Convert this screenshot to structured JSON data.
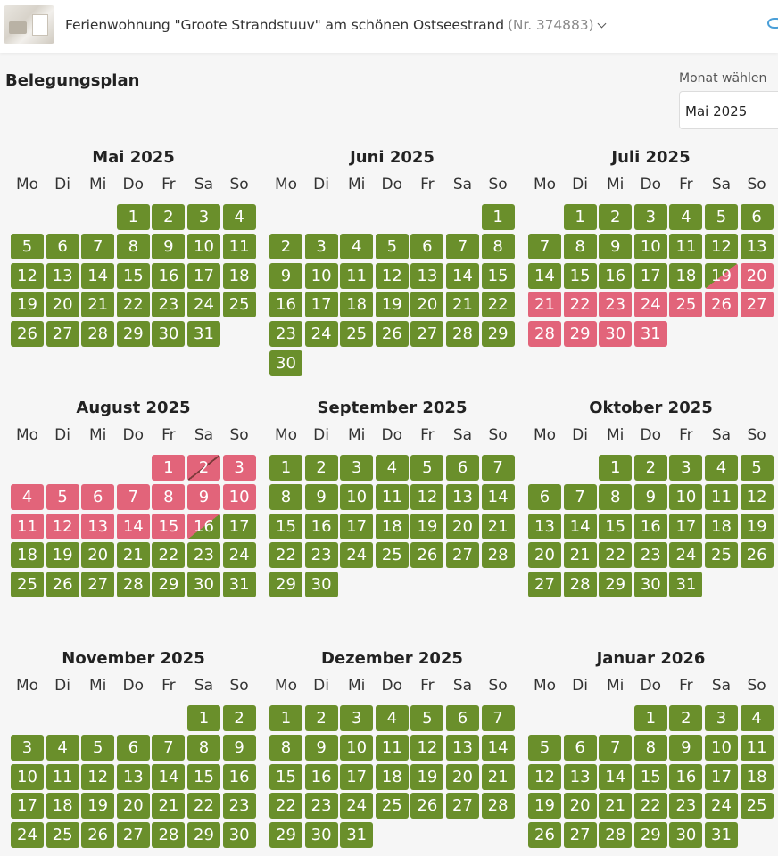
{
  "header": {
    "property_title": "Ferienwohnung \"Groote Strandstuuv\" am schönen Ostseestrand",
    "property_nr": "(Nr. 374883)"
  },
  "heading": "Belegungsplan",
  "month_select": {
    "label": "Monat wählen",
    "value": "Mai 2025"
  },
  "colors": {
    "free": "#6a8f2b",
    "booked": "#e2647a"
  },
  "weekdays": [
    "Mo",
    "Di",
    "Mi",
    "Do",
    "Fr",
    "Sa",
    "So"
  ],
  "months": [
    {
      "title": "Mai 2025",
      "offset": 3,
      "days": 31,
      "booked": [],
      "arrival": [],
      "departure": [],
      "changeover": []
    },
    {
      "title": "Juni 2025",
      "offset": 6,
      "days": 30,
      "booked": [],
      "arrival": [],
      "departure": [],
      "changeover": []
    },
    {
      "title": "Juli 2025",
      "offset": 1,
      "days": 31,
      "booked": [
        20,
        21,
        22,
        23,
        24,
        25,
        26,
        27,
        28,
        29,
        30,
        31
      ],
      "arrival": [
        19
      ],
      "departure": [],
      "changeover": []
    },
    {
      "title": "August 2025",
      "offset": 4,
      "days": 31,
      "booked": [
        1,
        3,
        4,
        5,
        6,
        7,
        8,
        9,
        10,
        11,
        12,
        13,
        14,
        15
      ],
      "arrival": [],
      "departure": [
        16
      ],
      "changeover": [
        2
      ]
    },
    {
      "title": "September 2025",
      "offset": 0,
      "days": 30,
      "booked": [],
      "arrival": [],
      "departure": [],
      "changeover": []
    },
    {
      "title": "Oktober 2025",
      "offset": 2,
      "days": 31,
      "booked": [],
      "arrival": [],
      "departure": [],
      "changeover": []
    },
    {
      "title": "November 2025",
      "offset": 5,
      "days": 30,
      "booked": [],
      "arrival": [],
      "departure": [],
      "changeover": []
    },
    {
      "title": "Dezember 2025",
      "offset": 0,
      "days": 31,
      "booked": [],
      "arrival": [],
      "departure": [],
      "changeover": []
    },
    {
      "title": "Januar 2026",
      "offset": 3,
      "days": 31,
      "booked": [],
      "arrival": [],
      "departure": [],
      "changeover": []
    }
  ]
}
